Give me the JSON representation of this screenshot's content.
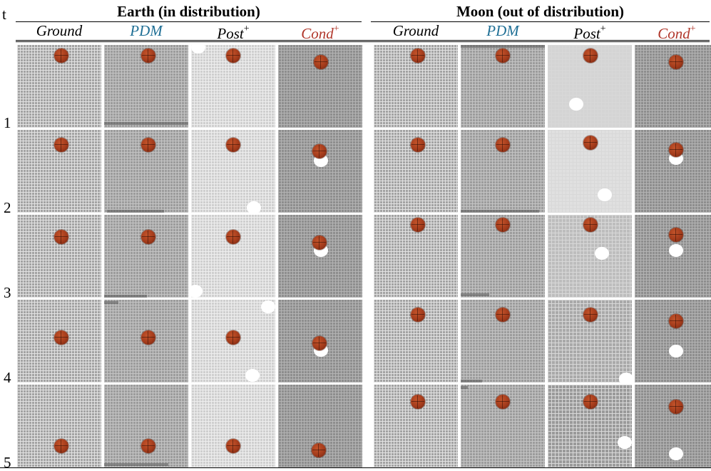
{
  "header": {
    "t_label": "t",
    "groups": [
      {
        "title": "Earth (in distribution)"
      },
      {
        "title": "Moon (out of distribution)"
      }
    ],
    "columns": [
      {
        "label": "Ground",
        "sup": "",
        "color": "#000000"
      },
      {
        "label": "PDM",
        "sup": "",
        "color": "#1f6f95"
      },
      {
        "label": "Post",
        "sup": "+",
        "color": "#000000"
      },
      {
        "label": "Cond",
        "sup": "+",
        "color": "#b0362a"
      },
      {
        "label": "Ground",
        "sup": "",
        "color": "#000000"
      },
      {
        "label": "PDM",
        "sup": "",
        "color": "#1f6f95"
      },
      {
        "label": "Post",
        "sup": "+",
        "color": "#000000"
      },
      {
        "label": "Cond",
        "sup": "+",
        "color": "#b0362a"
      }
    ]
  },
  "rows": [
    {
      "t": "1"
    },
    {
      "t": "2"
    },
    {
      "t": "3"
    },
    {
      "t": "4"
    },
    {
      "t": "5"
    }
  ],
  "colors": {
    "ball": "#a33b1b",
    "grid_bg": "#a8a8a8",
    "grid_line": "#dcdcdc",
    "blob": "#ffffff"
  }
}
